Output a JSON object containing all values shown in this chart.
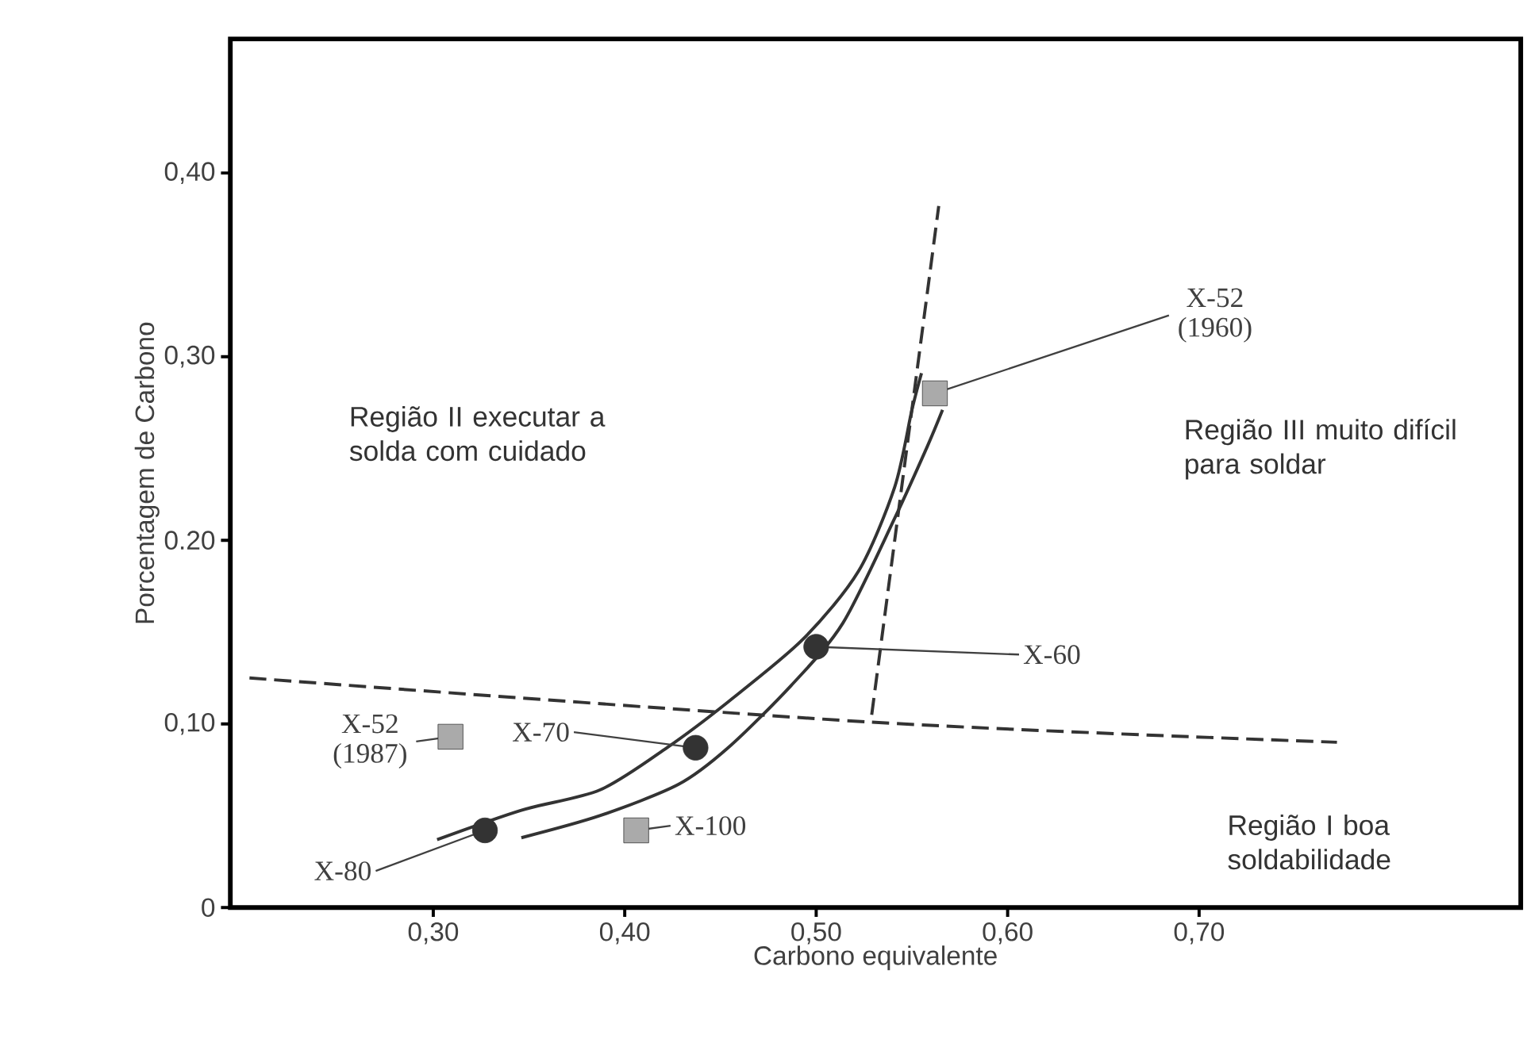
{
  "chart_data": {
    "type": "line",
    "xlabel": "Carbono equivalente",
    "ylabel": "Porcentagem de Carbono",
    "xlim": [
      0.194,
      0.868
    ],
    "ylim": [
      0,
      0.473
    ],
    "xticks": [
      {
        "value": 0.3,
        "label": "0,30"
      },
      {
        "value": 0.4,
        "label": "0,40"
      },
      {
        "value": 0.5,
        "label": "0,50"
      },
      {
        "value": 0.6,
        "label": "0,60"
      },
      {
        "value": 0.7,
        "label": "0,70"
      }
    ],
    "yticks": [
      {
        "value": 0,
        "label": "0"
      },
      {
        "value": 0.1,
        "label": "0,10"
      },
      {
        "value": 0.2,
        "label": "0.20"
      },
      {
        "value": 0.3,
        "label": "0,30"
      },
      {
        "value": 0.4,
        "label": "0,40"
      }
    ],
    "series": [
      {
        "type": "line",
        "line_style": "dashed",
        "color": "#333333",
        "x": [
          0.204,
          0.528,
          0.772
        ],
        "values": [
          0.125,
          0.101,
          0.09
        ]
      },
      {
        "type": "line",
        "line_style": "dashed",
        "color": "#333333",
        "x": [
          0.529,
          0.564
        ],
        "values": [
          0.105,
          0.382
        ]
      },
      {
        "type": "line",
        "line_style": "solid",
        "color": "#333333",
        "x": [
          0.302,
          0.346,
          0.387,
          0.422,
          0.454,
          0.493,
          0.522,
          0.541,
          0.55,
          0.555
        ],
        "values": [
          0.037,
          0.053,
          0.064,
          0.087,
          0.112,
          0.146,
          0.183,
          0.229,
          0.271,
          0.291
        ]
      },
      {
        "type": "line",
        "line_style": "solid",
        "color": "#333333",
        "x": [
          0.346,
          0.387,
          0.428,
          0.454,
          0.487,
          0.514,
          0.541,
          0.558,
          0.566
        ],
        "values": [
          0.038,
          0.05,
          0.067,
          0.087,
          0.121,
          0.155,
          0.212,
          0.251,
          0.271
        ]
      },
      {
        "type": "scatter",
        "marker": "circle",
        "color": "#333333",
        "x": [
          0.327,
          0.437,
          0.5
        ],
        "values": [
          0.042,
          0.087,
          0.142
        ]
      },
      {
        "type": "scatter",
        "marker": "square",
        "color": "#aaaaaa",
        "x": [
          0.309,
          0.406,
          0.562
        ],
        "values": [
          0.093,
          0.042,
          0.28
        ]
      }
    ],
    "annotations": [
      "Região II executar a solda com cuidado",
      "Região III muito difícil para soldar",
      "Região I boa soldabilidade",
      {
        "text": "X-80",
        "x": 0.327,
        "y": 0.042
      },
      {
        "text": "X-70",
        "x": 0.437,
        "y": 0.087
      },
      {
        "text": "X-100",
        "x": 0.406,
        "y": 0.042
      },
      {
        "text": "X-60",
        "x": 0.5,
        "y": 0.142
      },
      {
        "text": "X-52 (1960)",
        "x": 0.562,
        "y": 0.28
      },
      {
        "text": "X-52 (1987)",
        "x": 0.309,
        "y": 0.093
      }
    ]
  }
}
